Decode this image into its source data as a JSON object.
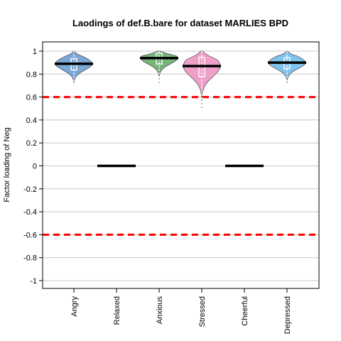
{
  "chart_data": {
    "type": "violin",
    "title": "Laodings of def.B.bare for dataset MARLIES BPD",
    "ylabel": "Factor loading of Neg",
    "xlabel": "",
    "ylim": [
      -1,
      1
    ],
    "yticks": [
      -1,
      -0.8,
      -0.6,
      -0.4,
      -0.2,
      0,
      0.2,
      0.4,
      0.6,
      0.8,
      1
    ],
    "ytick_labels": [
      "-1",
      "-0.8",
      "-0.6",
      "-0.4",
      "-0.2",
      "0",
      "0.2",
      "0.4",
      "0.6",
      "0.8",
      "1"
    ],
    "grid": true,
    "reference_lines": [
      0.6,
      -0.6
    ],
    "reference_line_color": "#ff0000",
    "categories": [
      "Angry",
      "Relaxed",
      "Anxious",
      "Stressed",
      "Cheerful",
      "Depressed"
    ],
    "medians": [
      0.89,
      0.0,
      0.94,
      0.87,
      0.0,
      0.9
    ],
    "violins": [
      {
        "category": "Angry",
        "color": "#7aa7d6",
        "min": 0.7,
        "max": 1.0,
        "median": 0.89
      },
      null,
      {
        "category": "Anxious",
        "color": "#77b57a",
        "min": 0.71,
        "max": 1.0,
        "median": 0.94
      },
      {
        "category": "Stressed",
        "color": "#f0a0c8",
        "min": 0.49,
        "max": 1.0,
        "median": 0.87
      },
      null,
      {
        "category": "Depressed",
        "color": "#7fc4ec",
        "min": 0.71,
        "max": 1.0,
        "median": 0.9
      }
    ]
  }
}
